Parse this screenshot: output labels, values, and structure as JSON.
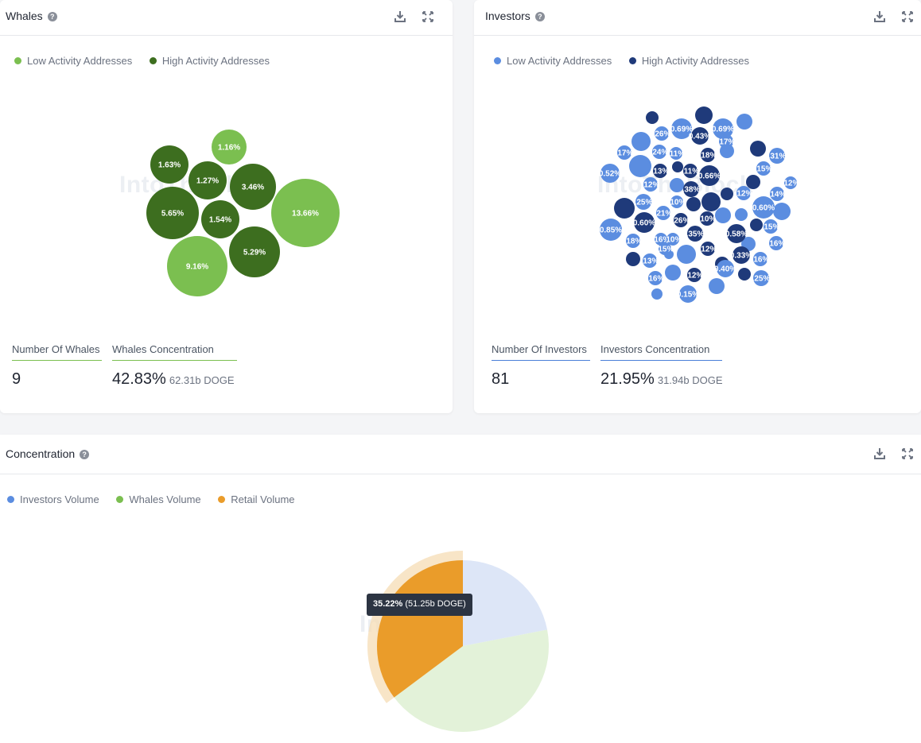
{
  "whales": {
    "title": "Whales",
    "help_icon": "?",
    "legend": [
      {
        "label": "Low Activity Addresses",
        "color": "#7bbf50"
      },
      {
        "label": "High Activity Addresses",
        "color": "#3d6e1f"
      }
    ],
    "stats": {
      "count_label": "Number Of Whales",
      "count_value": "9",
      "concentration_label": "Whales Concentration",
      "concentration_value": "42.83%",
      "concentration_sub": "62.31b DOGE"
    },
    "accent_color": "#7bbf50"
  },
  "investors": {
    "title": "Investors",
    "help_icon": "?",
    "legend": [
      {
        "label": "Low Activity Addresses",
        "color": "#5b8de0"
      },
      {
        "label": "High Activity Addresses",
        "color": "#1f3a7a"
      }
    ],
    "stats": {
      "count_label": "Number Of Investors",
      "count_value": "81",
      "concentration_label": "Investors Concentration",
      "concentration_value": "21.95%",
      "concentration_sub": "31.94b DOGE"
    },
    "accent_color": "#4a7ed8"
  },
  "concentration": {
    "title": "Concentration",
    "help_icon": "?",
    "legend": [
      {
        "label": "Investors Volume",
        "color": "#5b8de0"
      },
      {
        "label": "Whales Volume",
        "color": "#7bbf50"
      },
      {
        "label": "Retail Volume",
        "color": "#ea9c2a"
      }
    ],
    "tooltip": {
      "pct": "35.22%",
      "detail": "(51.25b DOGE)"
    }
  },
  "watermark": "IntoTheBlock",
  "icons": {
    "download": "download-icon",
    "expand": "expand-icon",
    "help": "help-icon"
  },
  "chart_data": [
    {
      "type": "bubble",
      "name": "Whales",
      "series": [
        {
          "name": "Low Activity Addresses",
          "color": "#7bbf50",
          "values": [
            13.66,
            9.16,
            1.16
          ]
        },
        {
          "name": "High Activity Addresses",
          "color": "#3d6e1f",
          "values": [
            5.65,
            5.29,
            3.46,
            1.63,
            1.54,
            1.27
          ]
        }
      ]
    },
    {
      "type": "bubble",
      "name": "Investors",
      "series": [
        {
          "name": "Low Activity Addresses",
          "color": "#5b8de0",
          "values": [
            0.85,
            0.69,
            0.69,
            0.6,
            0.52,
            0.4,
            0.31,
            0.26,
            0.25,
            0.25,
            0.24,
            0.21,
            0.18,
            0.17,
            0.17,
            0.16,
            0.16,
            0.16,
            0.16,
            0.15,
            0.15,
            0.15,
            0.15,
            0.14,
            0.13,
            0.12,
            0.12,
            0.12,
            0.11,
            0.1,
            0.1
          ]
        },
        {
          "name": "High Activity Addresses",
          "color": "#1f3a7a",
          "values": [
            0.66,
            0.6,
            0.58,
            0.43,
            0.38,
            0.35,
            0.33,
            0.26,
            0.18,
            0.13,
            0.12,
            0.12,
            0.11,
            0.1
          ]
        }
      ]
    },
    {
      "type": "pie",
      "name": "Concentration",
      "categories": [
        "Investors Volume",
        "Whales Volume",
        "Retail Volume"
      ],
      "values": [
        21.95,
        42.83,
        35.22
      ],
      "colors": [
        "#5b8de0",
        "#7bbf50",
        "#ea9c2a"
      ],
      "highlighted": "Retail Volume"
    }
  ]
}
